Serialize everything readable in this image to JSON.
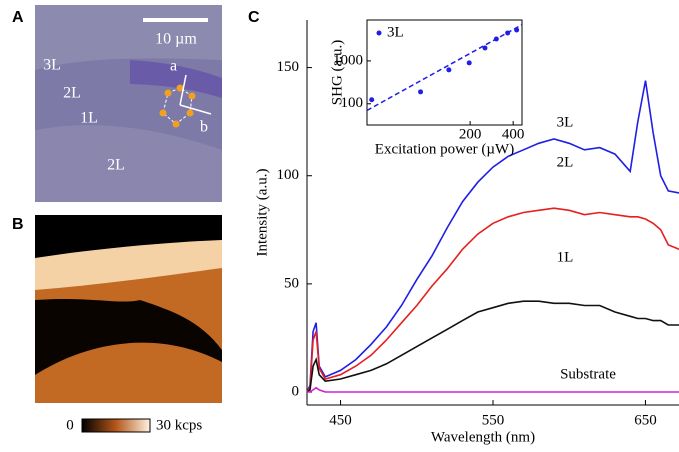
{
  "panels": {
    "a": {
      "label": "A",
      "scale_bar": "10 µm",
      "layers": [
        "3L",
        "2L",
        "1L",
        "2L"
      ],
      "axis_a": "a",
      "axis_b": "b"
    },
    "b": {
      "label": "B",
      "colorbar_min": "0",
      "colorbar_max": "30 kcps"
    },
    "c": {
      "label": "C"
    }
  },
  "chart_data": [
    {
      "type": "line",
      "x_label": "Wavelength (nm)",
      "y_label": "Intensity (a.u.)",
      "x": [
        428,
        430,
        432,
        434,
        436,
        440,
        450,
        460,
        470,
        480,
        490,
        500,
        510,
        520,
        530,
        540,
        550,
        560,
        570,
        580,
        590,
        600,
        610,
        620,
        630,
        640,
        645,
        650,
        655,
        660,
        665,
        672
      ],
      "series": [
        {
          "name": "3L",
          "color": "#1f1fe6",
          "values": [
            0,
            3,
            28,
            32,
            12,
            7,
            10,
            15,
            22,
            30,
            40,
            52,
            63,
            76,
            88,
            97,
            104,
            109,
            112,
            115,
            117,
            115,
            112,
            113,
            110,
            102,
            125,
            144,
            120,
            100,
            93,
            92
          ]
        },
        {
          "name": "2L",
          "color": "#e61f1f",
          "values": [
            0,
            2,
            24,
            28,
            11,
            6,
            8,
            12,
            17,
            24,
            32,
            40,
            49,
            57,
            66,
            73,
            78,
            81,
            83,
            84,
            85,
            84,
            82,
            83,
            82,
            81,
            81,
            80,
            78,
            75,
            68,
            66
          ]
        },
        {
          "name": "1L",
          "color": "#111111",
          "values": [
            0,
            1,
            12,
            15,
            8,
            5,
            6,
            8,
            10,
            13,
            17,
            21,
            25,
            29,
            33,
            37,
            39,
            41,
            42,
            42,
            41,
            41,
            40,
            40,
            37,
            35,
            34,
            34,
            33,
            33,
            31,
            31
          ]
        },
        {
          "name": "Substrate",
          "color": "#d020d0",
          "values": [
            0,
            0,
            1,
            2,
            1,
            0,
            0,
            0,
            0,
            0,
            0,
            0,
            0,
            0,
            0,
            0,
            0,
            0,
            0,
            0,
            0,
            0,
            0,
            0,
            0,
            0,
            0,
            0,
            0,
            0,
            0,
            0
          ]
        }
      ],
      "xlim": [
        428,
        672
      ],
      "ylim": [
        -6,
        172
      ],
      "xticks": [
        450,
        550,
        650
      ],
      "yticks": [
        0,
        50,
        100,
        150
      ]
    },
    {
      "type": "scatter",
      "x_label": "Excitation power (µW)",
      "y_label": "SHG (a.u.)",
      "log_x": true,
      "log_y": true,
      "series": [
        {
          "name": "3L",
          "color": "#1f1fe6",
          "x": [
            41,
            90,
            142,
            197,
            254,
            305,
            366,
            423
          ],
          "values": [
            124,
            190,
            617,
            899,
            2000,
            3250,
            4490,
            5270
          ]
        }
      ],
      "fit": {
        "x": [
          38,
          461
        ],
        "values": [
          70,
          7000
        ]
      },
      "xlim": [
        38,
        461
      ],
      "ylim": [
        32,
        9000
      ],
      "xticks": [
        200,
        400
      ],
      "yticks": [
        100,
        1000
      ]
    }
  ]
}
